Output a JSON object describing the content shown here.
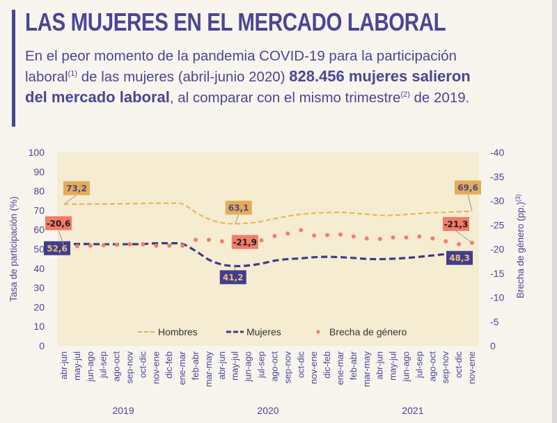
{
  "header": {
    "title": "LAS MUJERES EN EL MERCADO LABORAL",
    "lead_1": "En el peor momento de la pandemia COVID-19 para la participación laboral",
    "lead_sup_1": "(1)",
    "lead_2": " de las mujeres (abril-junio 2020) ",
    "lead_bold": "828.456 mujeres salieron del mercado laboral",
    "lead_3": ", al comparar con el mismo trimestre",
    "lead_sup_2": "(2)",
    "lead_4": " de 2019."
  },
  "colors": {
    "brand": "#4b4596",
    "hombres": "#e8b24e",
    "mujeres": "#3f3b84",
    "brecha": "#f27e6b",
    "plot_bg": "#f5ecd2",
    "hombres_label_bg": "#e3ad55",
    "brecha_label_bg": "#f47b66",
    "mujeres_label_bg": "#423d8e"
  },
  "chart_data": {
    "type": "line",
    "title": "",
    "ylabel": "Tasa de participación (%)",
    "ylabel_right": "Brecha de género (pp.)",
    "ylabel_right_sup": "(3)",
    "ylim": [
      0,
      100
    ],
    "ylim_right": [
      0,
      -40
    ],
    "yticks": [
      0,
      10,
      20,
      30,
      40,
      50,
      60,
      70,
      80,
      90,
      100
    ],
    "yticks_right": [
      "0",
      "-5",
      "-10",
      "-15",
      "-20",
      "-25",
      "-30",
      "-35",
      "-40"
    ],
    "grid": false,
    "legend_position": "bottom-inside",
    "categories": [
      "abr-jun",
      "may-jul",
      "jun-ago",
      "jul-sep",
      "ago-oct",
      "sep-nov",
      "oct-dic",
      "nov-ene",
      "dic-feb",
      "ene-mar",
      "feb-abr",
      "mar-may",
      "abr-jun",
      "may-jul",
      "jun-ago",
      "jul-sep",
      "ago-oct",
      "sep-nov",
      "oct-dic",
      "nov-ene",
      "dic-feb",
      "ene-mar",
      "feb-abr",
      "mar-may",
      "abr-jun",
      "may-jul",
      "jun-ago",
      "jul-sep",
      "ago-oct",
      "sep-nov",
      "oct-dic",
      "nov-ene"
    ],
    "year_groups": [
      {
        "label": "2019",
        "start": 0,
        "end": 9
      },
      {
        "label": "2020",
        "start": 10,
        "end": 21
      },
      {
        "label": "2021",
        "start": 22,
        "end": 31
      }
    ],
    "series": [
      {
        "name": "Hombres",
        "axis": "left",
        "style": "dashed-thin",
        "values": [
          73.2,
          73.2,
          73.3,
          73.3,
          73.4,
          73.5,
          73.6,
          73.7,
          73.7,
          73.3,
          69.0,
          65.5,
          63.6,
          63.1,
          63.4,
          64.3,
          65.7,
          67.0,
          68.0,
          68.6,
          68.9,
          69.0,
          68.6,
          68.0,
          67.5,
          67.5,
          67.9,
          68.4,
          68.8,
          69.0,
          69.3,
          69.6
        ]
      },
      {
        "name": "Mujeres",
        "axis": "left",
        "style": "dashed-thick",
        "values": [
          52.6,
          52.6,
          52.6,
          52.5,
          52.5,
          52.5,
          52.6,
          53.0,
          53.0,
          52.6,
          49.0,
          44.5,
          42.0,
          41.2,
          41.5,
          42.5,
          44.0,
          44.8,
          45.2,
          45.8,
          46.0,
          45.8,
          45.4,
          44.9,
          44.8,
          45.0,
          45.4,
          46.0,
          46.7,
          47.4,
          47.9,
          48.3
        ]
      },
      {
        "name": "Brecha de género",
        "axis": "right",
        "style": "dots",
        "values": [
          -20.6,
          -20.6,
          -20.7,
          -20.8,
          -20.9,
          -21.0,
          -21.0,
          -20.7,
          -20.7,
          -20.7,
          -21.9,
          -21.9,
          -21.6,
          -21.9,
          -21.4,
          -21.8,
          -22.7,
          -23.2,
          -23.9,
          -22.8,
          -22.9,
          -23.0,
          -22.6,
          -22.2,
          -22.1,
          -22.4,
          -22.4,
          -22.6,
          -22.2,
          -21.6,
          -21.0,
          -21.3
        ]
      }
    ],
    "annotations": [
      {
        "series": "Hombres",
        "index": 0,
        "text": "73,2"
      },
      {
        "series": "Hombres",
        "index": 13,
        "text": "63,1"
      },
      {
        "series": "Hombres",
        "index": 31,
        "text": "69,6"
      },
      {
        "series": "Mujeres",
        "index": 0,
        "text": "52,6"
      },
      {
        "series": "Mujeres",
        "index": 13,
        "text": "41,2"
      },
      {
        "series": "Mujeres",
        "index": 31,
        "text": "48,3"
      },
      {
        "series": "Brecha de género",
        "index": 0,
        "text": "-20,6"
      },
      {
        "series": "Brecha de género",
        "index": 13,
        "text": "-21,9"
      },
      {
        "series": "Brecha de género",
        "index": 31,
        "text": "-21,3"
      }
    ]
  }
}
